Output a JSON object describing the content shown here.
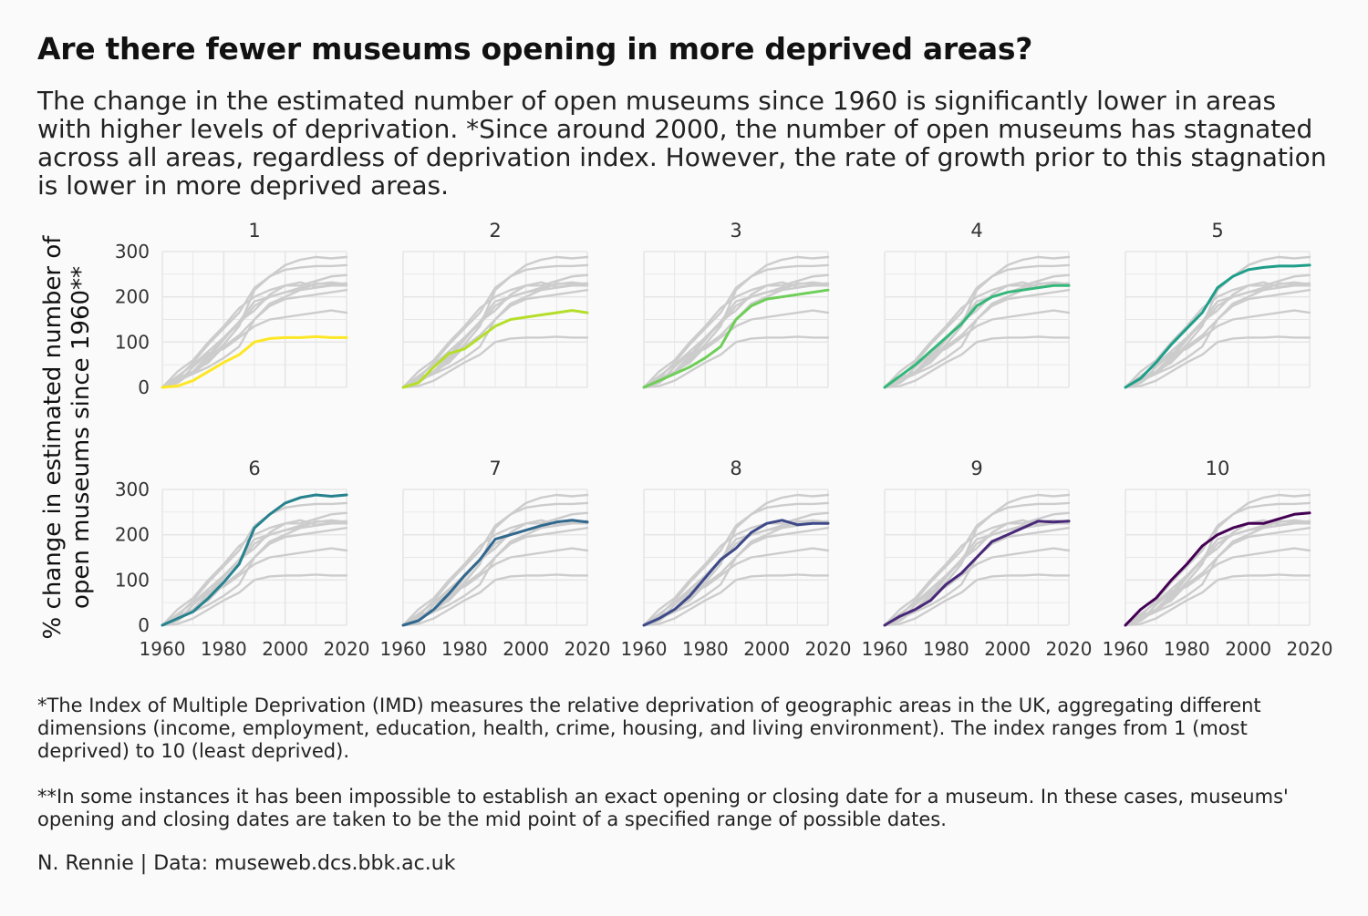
{
  "title": "Are there fewer museums opening in more deprived areas?",
  "subtitle": "The change in the estimated number of open museums since 1960 is significantly lower in areas with higher levels of deprivation. *Since around 2000, the number of open museums has stagnated across all areas, regardless of deprivation index. However, the rate of growth prior to this stagnation is lower in more deprived areas.",
  "footnote_1": "*The Index of Multiple Deprivation (IMD) measures the relative deprivation of geographic areas in the UK, aggregating different dimensions (income, employment, education, health, crime, housing, and living environment). The index ranges from 1 (most deprived) to 10 (least deprived).",
  "footnote_2": "**In some instances it has been impossible to establish an exact opening or closing date for a museum. In these cases, museums' opening and closing dates are taken to be the mid point of a specified range of possible dates.",
  "caption": "N. Rennie | Data: museweb.dcs.bbk.ac.uk",
  "colors": {
    "background": "#fafafa",
    "grid": "#e6e6e6",
    "context_line": "#cccccc",
    "text": "#111111"
  },
  "chart_data": {
    "type": "line",
    "facets": [
      "1",
      "2",
      "3",
      "4",
      "5",
      "6",
      "7",
      "8",
      "9",
      "10"
    ],
    "ylabel": "% change in estimated number of open museums since 1960**",
    "xlabel": "",
    "x_ticks": [
      "1960",
      "1980",
      "2000",
      "2020"
    ],
    "y_ticks": [
      "0",
      "100",
      "200",
      "300"
    ],
    "xlim": [
      1960,
      2020
    ],
    "ylim": [
      0,
      300
    ],
    "grid": true,
    "legend": "none",
    "x": [
      1960,
      1965,
      1970,
      1975,
      1980,
      1985,
      1990,
      1995,
      2000,
      2005,
      2010,
      2015,
      2020
    ],
    "series": [
      {
        "name": "1",
        "color": "#fde725",
        "values": [
          0,
          3,
          15,
          35,
          55,
          72,
          100,
          108,
          110,
          110,
          112,
          110,
          110
        ]
      },
      {
        "name": "2",
        "color": "#b5de2b",
        "values": [
          0,
          10,
          45,
          75,
          85,
          110,
          135,
          150,
          155,
          160,
          165,
          170,
          165
        ]
      },
      {
        "name": "3",
        "color": "#6ece58",
        "values": [
          0,
          15,
          30,
          45,
          65,
          90,
          150,
          180,
          195,
          200,
          205,
          210,
          215
        ]
      },
      {
        "name": "4",
        "color": "#35b779",
        "values": [
          0,
          25,
          50,
          80,
          110,
          140,
          180,
          200,
          210,
          215,
          220,
          225,
          225
        ]
      },
      {
        "name": "5",
        "color": "#1f9e89",
        "values": [
          0,
          20,
          55,
          95,
          130,
          165,
          220,
          245,
          260,
          265,
          268,
          268,
          270
        ]
      },
      {
        "name": "6",
        "color": "#26828e",
        "values": [
          0,
          15,
          30,
          60,
          95,
          135,
          215,
          245,
          270,
          282,
          288,
          285,
          288
        ]
      },
      {
        "name": "7",
        "color": "#31688e",
        "values": [
          0,
          10,
          35,
          70,
          110,
          145,
          190,
          200,
          210,
          220,
          228,
          232,
          228
        ]
      },
      {
        "name": "8",
        "color": "#3e4989",
        "values": [
          0,
          15,
          35,
          65,
          105,
          145,
          170,
          205,
          225,
          232,
          222,
          225,
          225
        ]
      },
      {
        "name": "9",
        "color": "#482878",
        "values": [
          0,
          20,
          35,
          55,
          90,
          115,
          150,
          185,
          200,
          215,
          230,
          228,
          230
        ]
      },
      {
        "name": "10",
        "color": "#440154",
        "values": [
          0,
          35,
          60,
          100,
          135,
          175,
          200,
          215,
          225,
          225,
          235,
          245,
          248
        ]
      }
    ]
  }
}
